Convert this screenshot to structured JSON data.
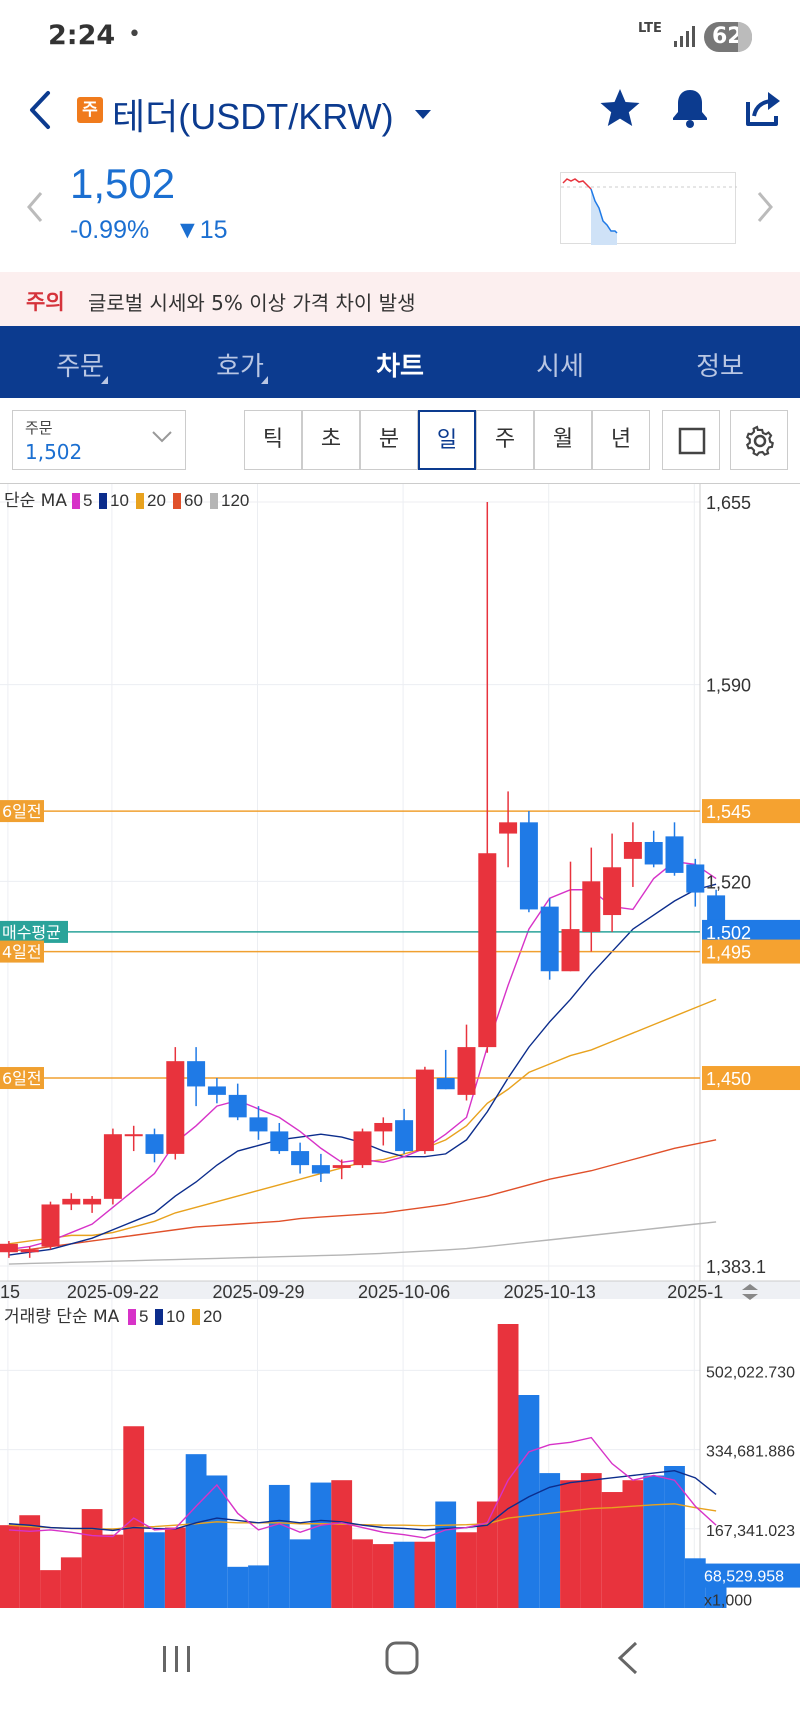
{
  "status_bar": {
    "time": "2:24",
    "dot": "•",
    "network": "LTE",
    "battery": "62"
  },
  "header": {
    "badge": "주",
    "title": "테더(USDT/KRW)"
  },
  "price": {
    "current": "1,502",
    "change_pct": "-0.99%",
    "change_abs": "▼15"
  },
  "notice": {
    "label": "주의",
    "message": "글로벌 시세와 5% 이상 가격 차이 발생"
  },
  "tabs": [
    {
      "label": "주문",
      "has_menu": true
    },
    {
      "label": "호가",
      "has_menu": true
    },
    {
      "label": "차트",
      "has_menu": false,
      "active": true
    },
    {
      "label": "시세",
      "has_menu": false
    },
    {
      "label": "정보",
      "has_menu": false
    }
  ],
  "toolbar": {
    "order_label": "주문",
    "order_value": "1,502",
    "intervals": [
      "틱",
      "초",
      "분",
      "일",
      "주",
      "월",
      "년"
    ],
    "active_interval": "일"
  },
  "colors": {
    "up": "#e8333d",
    "down": "#1f7ae6",
    "ma5": "#d733c8",
    "ma10": "#0c2d8c",
    "ma20": "#e8a21e",
    "ma60": "#e0502a",
    "ma120": "#b5b5b5",
    "brand": "#0c3b8f"
  },
  "chart_data": {
    "type": "candlestick",
    "price_panel": {
      "legend_prefix": "단순 MA",
      "ma_legend": [
        {
          "label": "5",
          "color": "#d733c8"
        },
        {
          "label": "10",
          "color": "#0c2d8c"
        },
        {
          "label": "20",
          "color": "#e8a21e"
        },
        {
          "label": "60",
          "color": "#e0502a"
        },
        {
          "label": "120",
          "color": "#b5b5b5"
        }
      ],
      "y_ticks": [
        {
          "value": 1655,
          "label": "1,655"
        },
        {
          "value": 1590,
          "label": "1,590"
        },
        {
          "value": 1520,
          "label": "1,520"
        },
        {
          "value": 1383.1,
          "label": "1,383.1"
        }
      ],
      "ylim": [
        1383.1,
        1655
      ],
      "x_tick_labels": [
        {
          "index": 0,
          "label": "15"
        },
        {
          "index": 5,
          "label": "2025-09-22"
        },
        {
          "index": 12,
          "label": "2025-09-29"
        },
        {
          "index": 19,
          "label": "2025-10-06"
        },
        {
          "index": 26,
          "label": "2025-10-13"
        },
        {
          "index": 33,
          "label": "2025-1"
        }
      ],
      "candles": [
        {
          "o": 1388,
          "h": 1392,
          "l": 1386,
          "c": 1391
        },
        {
          "o": 1388,
          "h": 1390,
          "l": 1386,
          "c": 1389
        },
        {
          "o": 1390,
          "h": 1406,
          "l": 1389,
          "c": 1405
        },
        {
          "o": 1405,
          "h": 1409,
          "l": 1403,
          "c": 1407
        },
        {
          "o": 1405,
          "h": 1408,
          "l": 1402,
          "c": 1407
        },
        {
          "o": 1407,
          "h": 1432,
          "l": 1405,
          "c": 1430
        },
        {
          "o": 1430,
          "h": 1433,
          "l": 1424,
          "c": 1430
        },
        {
          "o": 1430,
          "h": 1432,
          "l": 1420,
          "c": 1423
        },
        {
          "o": 1423,
          "h": 1461,
          "l": 1421,
          "c": 1456
        },
        {
          "o": 1456,
          "h": 1461,
          "l": 1440,
          "c": 1447
        },
        {
          "o": 1447,
          "h": 1450,
          "l": 1441,
          "c": 1444
        },
        {
          "o": 1444,
          "h": 1448,
          "l": 1435,
          "c": 1436
        },
        {
          "o": 1436,
          "h": 1440,
          "l": 1428,
          "c": 1431
        },
        {
          "o": 1431,
          "h": 1434,
          "l": 1423,
          "c": 1424
        },
        {
          "o": 1424,
          "h": 1427,
          "l": 1416,
          "c": 1419
        },
        {
          "o": 1419,
          "h": 1423,
          "l": 1413,
          "c": 1416
        },
        {
          "o": 1418,
          "h": 1421,
          "l": 1414,
          "c": 1419
        },
        {
          "o": 1419,
          "h": 1432,
          "l": 1418,
          "c": 1431
        },
        {
          "o": 1431,
          "h": 1436,
          "l": 1426,
          "c": 1434
        },
        {
          "o": 1435,
          "h": 1439,
          "l": 1423,
          "c": 1424
        },
        {
          "o": 1424,
          "h": 1454,
          "l": 1423,
          "c": 1453
        },
        {
          "o": 1450,
          "h": 1460,
          "l": 1446,
          "c": 1446
        },
        {
          "o": 1444,
          "h": 1469,
          "l": 1442,
          "c": 1461
        },
        {
          "o": 1461,
          "h": 1655,
          "l": 1459,
          "c": 1530
        },
        {
          "o": 1537,
          "h": 1552,
          "l": 1525,
          "c": 1541
        },
        {
          "o": 1541,
          "h": 1545,
          "l": 1509,
          "c": 1510
        },
        {
          "o": 1511,
          "h": 1514,
          "l": 1485,
          "c": 1488
        },
        {
          "o": 1488,
          "h": 1527,
          "l": 1488,
          "c": 1503
        },
        {
          "o": 1502,
          "h": 1532,
          "l": 1495,
          "c": 1520
        },
        {
          "o": 1508,
          "h": 1537,
          "l": 1502,
          "c": 1525
        },
        {
          "o": 1528,
          "h": 1541,
          "l": 1518,
          "c": 1534
        },
        {
          "o": 1534,
          "h": 1538,
          "l": 1525,
          "c": 1526
        },
        {
          "o": 1536,
          "h": 1541,
          "l": 1522,
          "c": 1523
        },
        {
          "o": 1526,
          "h": 1528,
          "l": 1511,
          "c": 1516
        },
        {
          "o": 1515,
          "h": 1517,
          "l": 1502,
          "c": 1502
        }
      ],
      "ma_lines": {
        "ma5": [
          1389,
          1390,
          1392,
          1395,
          1398,
          1404,
          1410,
          1416,
          1427,
          1433,
          1440,
          1442,
          1439,
          1436,
          1431,
          1425,
          1420,
          1421,
          1420,
          1422,
          1425,
          1430,
          1436,
          1461,
          1483,
          1503,
          1514,
          1517,
          1517,
          1511,
          1510,
          1521,
          1527,
          1526,
          1521
        ],
        "ma10": [
          1387,
          1388,
          1389,
          1391,
          1393,
          1396,
          1399,
          1402,
          1408,
          1413,
          1419,
          1424,
          1426,
          1428,
          1429,
          1430,
          1429,
          1427,
          1424,
          1422,
          1422,
          1423,
          1428,
          1438,
          1450,
          1461,
          1470,
          1478,
          1487,
          1495,
          1503,
          1508,
          1513,
          1517,
          1519
        ],
        "ma20": [
          1391,
          1392,
          1393,
          1394,
          1394,
          1395,
          1397,
          1399,
          1402,
          1404,
          1406,
          1408,
          1410,
          1412,
          1414,
          1416,
          1418,
          1420,
          1421,
          1423,
          1425,
          1428,
          1433,
          1441,
          1446,
          1452,
          1455,
          1458,
          1460,
          1463,
          1466,
          1469,
          1472,
          1475,
          1478
        ],
        "ma60": [
          1388.5,
          1389,
          1390,
          1391,
          1392,
          1393,
          1394,
          1395,
          1396,
          1397,
          1397.5,
          1398,
          1398.5,
          1399,
          1400,
          1400.5,
          1401,
          1401.5,
          1402,
          1403,
          1404,
          1405,
          1406.5,
          1408,
          1410,
          1412,
          1414,
          1415.5,
          1417,
          1419,
          1421,
          1423,
          1425,
          1426.5,
          1428
        ],
        "ma120": [
          1383.8,
          1384,
          1384.2,
          1384.4,
          1384.6,
          1384.8,
          1385,
          1385.2,
          1385.4,
          1385.6,
          1385.8,
          1386,
          1386.2,
          1386.4,
          1386.6,
          1386.8,
          1387,
          1387.3,
          1387.6,
          1388,
          1388.4,
          1388.8,
          1389.3,
          1390,
          1390.8,
          1391.6,
          1392.4,
          1393.2,
          1394,
          1394.8,
          1395.6,
          1396.4,
          1397.2,
          1398,
          1398.8
        ]
      },
      "horizontal_lines": [
        {
          "tag": "6일전",
          "label": "1,545",
          "value": 1545,
          "color": "#f0a030",
          "style": "orange"
        },
        {
          "tag": "매수평균",
          "label": "1,502",
          "value": 1502,
          "color": "#2aa39a",
          "style": "current"
        },
        {
          "tag": "4일전",
          "label": "1,495",
          "value": 1495,
          "color": "#f0a030",
          "style": "orange"
        },
        {
          "tag": "6일전",
          "label": "1,450",
          "value": 1450,
          "color": "#f0a030",
          "style": "orange"
        }
      ]
    },
    "volume_panel": {
      "legend_prefix": "거래량 단순 MA",
      "ma_legend": [
        {
          "label": "5",
          "color": "#d733c8"
        },
        {
          "label": "10",
          "color": "#0c2d8c"
        },
        {
          "label": "20",
          "color": "#e8a21e"
        }
      ],
      "y_ticks": [
        {
          "value": 502022.73,
          "label": "502,022.730"
        },
        {
          "value": 334681.886,
          "label": "334,681.886"
        },
        {
          "value": 167341.023,
          "label": "167,341.023"
        }
      ],
      "current_label": "68,529.958",
      "unit_label": "x1,000",
      "ylim": [
        0,
        600000
      ],
      "volumes": [
        175000,
        196000,
        80000,
        107000,
        209000,
        155000,
        384000,
        160000,
        170000,
        325000,
        280000,
        87000,
        90000,
        260000,
        145000,
        265000,
        270000,
        145000,
        135000,
        140000,
        140000,
        225000,
        160000,
        225000,
        600000,
        450000,
        285000,
        270000,
        285000,
        245000,
        270000,
        280000,
        300000,
        105000,
        68530
      ],
      "ma5": [
        165000,
        162000,
        165000,
        160000,
        153000,
        151000,
        190000,
        165000,
        168000,
        215000,
        260000,
        200000,
        165000,
        178000,
        160000,
        175000,
        180000,
        170000,
        160000,
        155000,
        148000,
        165000,
        170000,
        180000,
        270000,
        330000,
        345000,
        350000,
        360000,
        305000,
        270000,
        280000,
        270000,
        215000,
        175000
      ],
      "ma10": [
        178000,
        175000,
        170000,
        168000,
        168000,
        164000,
        170000,
        168000,
        167000,
        180000,
        190000,
        185000,
        180000,
        185000,
        180000,
        185000,
        182000,
        175000,
        170000,
        168000,
        165000,
        168000,
        170000,
        175000,
        210000,
        235000,
        255000,
        265000,
        270000,
        275000,
        280000,
        285000,
        290000,
        275000,
        240000
      ],
      "ma20": [
        175000,
        172000,
        170000,
        168000,
        167000,
        167000,
        170000,
        172000,
        175000,
        178000,
        182000,
        180000,
        180000,
        180000,
        178000,
        178000,
        177000,
        176000,
        175000,
        175000,
        174000,
        175000,
        176000,
        178000,
        190000,
        195000,
        200000,
        205000,
        210000,
        212000,
        215000,
        218000,
        220000,
        212000,
        205000
      ]
    }
  }
}
